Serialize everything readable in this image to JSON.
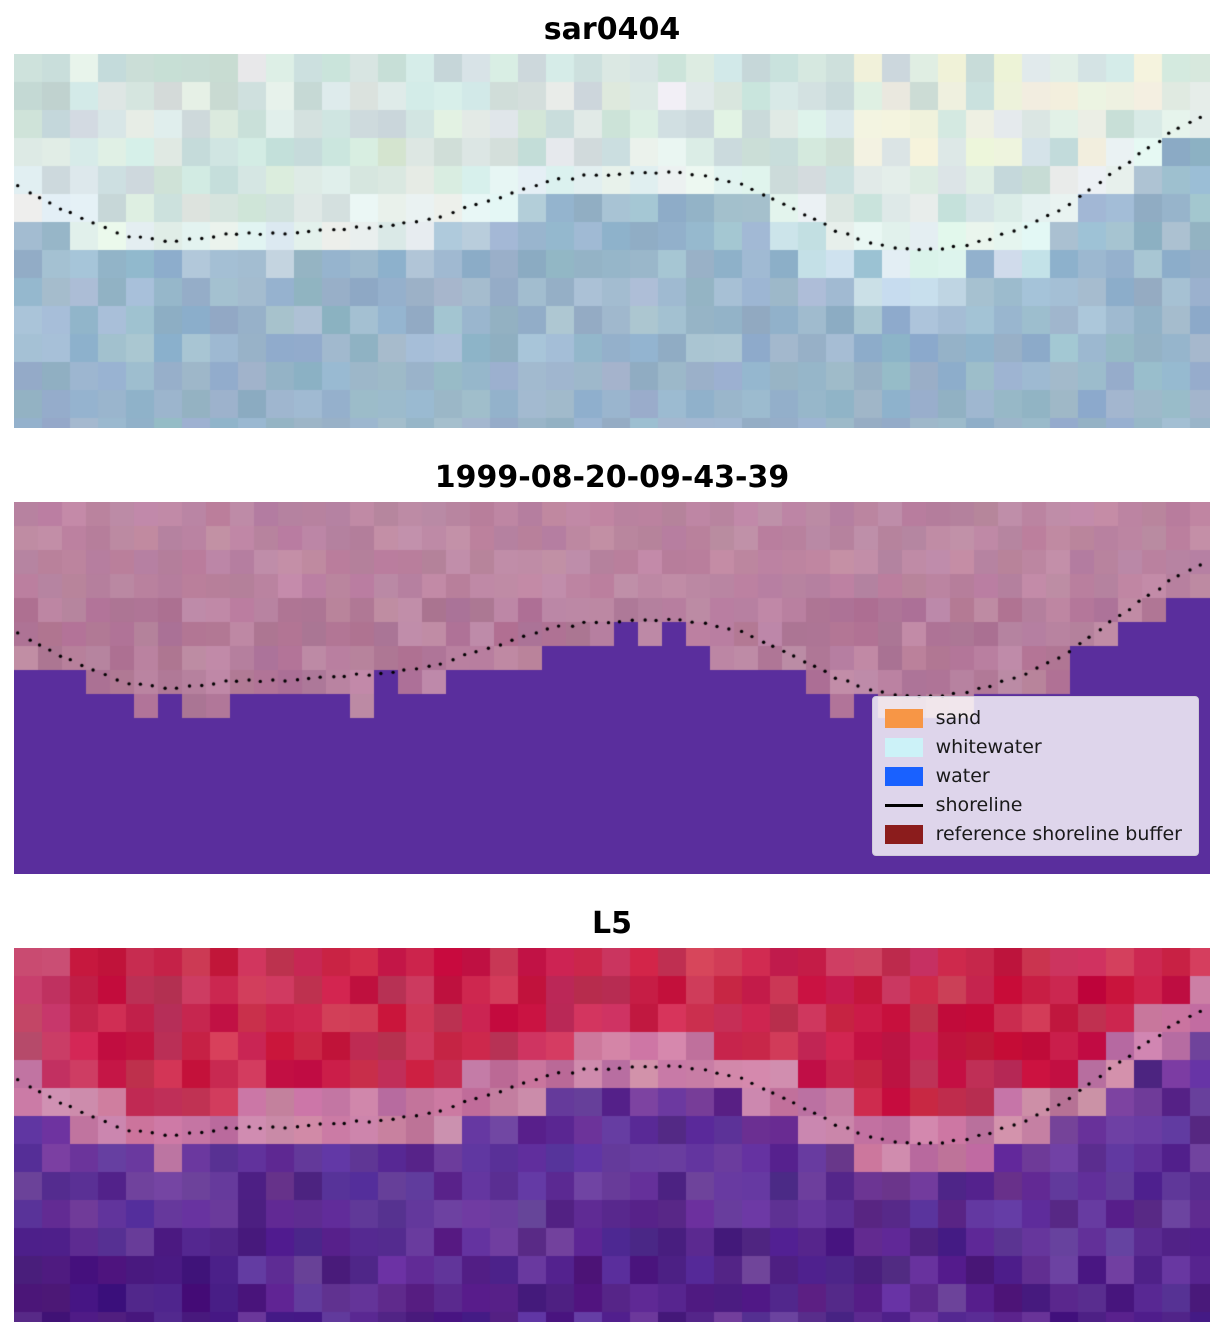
{
  "figure": {
    "background": "#ffffff",
    "panels": [
      {
        "id": "sar0404",
        "title": "sar0404",
        "palette": {
          "cloud": [
            "#d8e7e3",
            "#cfe0dc",
            "#e3eee9",
            "#c8dcd8",
            "#dcebe6"
          ],
          "cream": "#f8f3dc",
          "green": "#c8ddc8",
          "shore": "#eaf7f5",
          "sea": [
            "#a1bcd1",
            "#97b4cb",
            "#a9c2d5",
            "#90aec7"
          ],
          "seaLight": "#ddeef3"
        }
      },
      {
        "id": "classified",
        "title": "1999-08-20-09-43-39",
        "palette": {
          "land": [
            "#b8819e",
            "#b07696",
            "#bf8aa6",
            "#ad7294"
          ],
          "landTop": "#c491aa",
          "water": "#5a2e9d"
        }
      },
      {
        "id": "l5",
        "title": "L5",
        "palette": {
          "red": [
            "#c62148",
            "#d13a5c",
            "#ba2c52",
            "#c41140",
            "#cd2950"
          ],
          "redDeep": "#bf0136",
          "pink": [
            "#c87ba2",
            "#bc6f9c",
            "#d08cac"
          ],
          "purple": [
            "#5b2d96",
            "#66379f",
            "#522487",
            "#6c3e9e"
          ],
          "purpleDark": [
            "#45137c",
            "#501b87",
            "#3e0d72"
          ]
        }
      }
    ],
    "legend": {
      "items": [
        {
          "label": "sand",
          "color": "#f79646",
          "swatch": "patch"
        },
        {
          "label": "whitewater",
          "color": "#ccf2f8",
          "swatch": "patch"
        },
        {
          "label": "water",
          "color": "#1961ff",
          "swatch": "patch"
        },
        {
          "label": "shoreline",
          "color": "#000000",
          "swatch": "line"
        },
        {
          "label": "reference shoreline buffer",
          "color": "#8b1c1c",
          "swatch": "patch"
        }
      ]
    }
  },
  "chart_data": {
    "type": "heatmap",
    "panels": [
      {
        "title": "sar0404",
        "kind": "rgb satellite image with dotted shoreline"
      },
      {
        "title": "1999-08-20-09-43-39",
        "kind": "classified land/water image with dotted shoreline and legend"
      },
      {
        "title": "L5",
        "kind": "false-color image with dotted shoreline"
      }
    ],
    "legend_entries": [
      "sand",
      "whitewater",
      "water",
      "shoreline",
      "reference shoreline buffer"
    ],
    "shoreline_points": [
      [
        0.004,
        0.355
      ],
      [
        0.03,
        0.4
      ],
      [
        0.06,
        0.445
      ],
      [
        0.1,
        0.49
      ],
      [
        0.13,
        0.5
      ],
      [
        0.17,
        0.485
      ],
      [
        0.21,
        0.48
      ],
      [
        0.25,
        0.475
      ],
      [
        0.29,
        0.465
      ],
      [
        0.33,
        0.45
      ],
      [
        0.36,
        0.43
      ],
      [
        0.39,
        0.4
      ],
      [
        0.42,
        0.365
      ],
      [
        0.45,
        0.34
      ],
      [
        0.48,
        0.325
      ],
      [
        0.52,
        0.315
      ],
      [
        0.55,
        0.315
      ],
      [
        0.58,
        0.325
      ],
      [
        0.61,
        0.35
      ],
      [
        0.64,
        0.395
      ],
      [
        0.67,
        0.445
      ],
      [
        0.7,
        0.49
      ],
      [
        0.73,
        0.515
      ],
      [
        0.76,
        0.525
      ],
      [
        0.79,
        0.515
      ],
      [
        0.82,
        0.49
      ],
      [
        0.85,
        0.455
      ],
      [
        0.875,
        0.415
      ],
      [
        0.9,
        0.36
      ],
      [
        0.92,
        0.315
      ],
      [
        0.94,
        0.27
      ],
      [
        0.96,
        0.225
      ],
      [
        0.98,
        0.185
      ],
      [
        0.995,
        0.16
      ]
    ]
  }
}
